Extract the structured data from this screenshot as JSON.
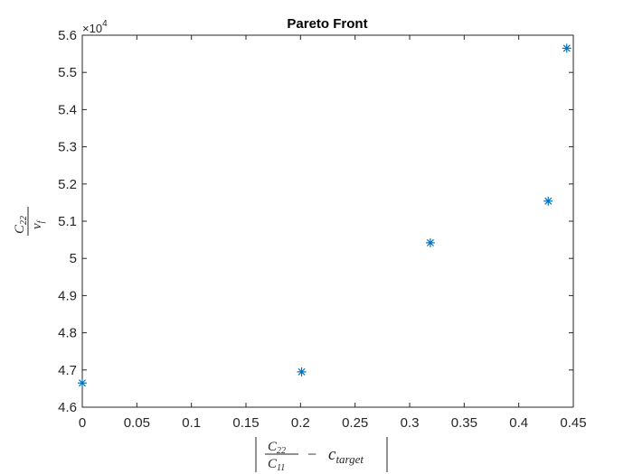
{
  "chart_data": {
    "type": "scatter",
    "title": "Pareto Front",
    "y_multiplier": "×10",
    "y_multiplier_exp": "4",
    "xlabel_parts": {
      "num": "C",
      "num_sub": "22",
      "den": "C",
      "den_sub": "11",
      "minus": "−",
      "c": "c",
      "c_sub": "target"
    },
    "ylabel_parts": {
      "num": "C",
      "num_sub": "22",
      "den": "v",
      "den_sub": "f"
    },
    "xlim": [
      0,
      0.45
    ],
    "ylim": [
      46000,
      56000
    ],
    "x_ticks": [
      0,
      0.05,
      0.1,
      0.15,
      0.2,
      0.25,
      0.3,
      0.35,
      0.4,
      0.45
    ],
    "x_tick_labels": [
      "0",
      "0.05",
      "0.1",
      "0.15",
      "0.2",
      "0.25",
      "0.3",
      "0.35",
      "0.4",
      "0.45"
    ],
    "y_ticks": [
      46000,
      47000,
      48000,
      49000,
      50000,
      51000,
      52000,
      53000,
      54000,
      55000,
      56000
    ],
    "y_tick_labels": [
      "4.6",
      "4.7",
      "4.8",
      "4.9",
      "5",
      "5.1",
      "5.2",
      "5.3",
      "5.4",
      "5.5",
      "5.6"
    ],
    "grid": false,
    "marker": "asterisk",
    "marker_color": "#0072BD",
    "series": [
      {
        "x": [
          0.0,
          0.201,
          0.319,
          0.427,
          0.444
        ],
        "y": [
          46650,
          46950,
          50420,
          51540,
          55650
        ]
      }
    ]
  }
}
